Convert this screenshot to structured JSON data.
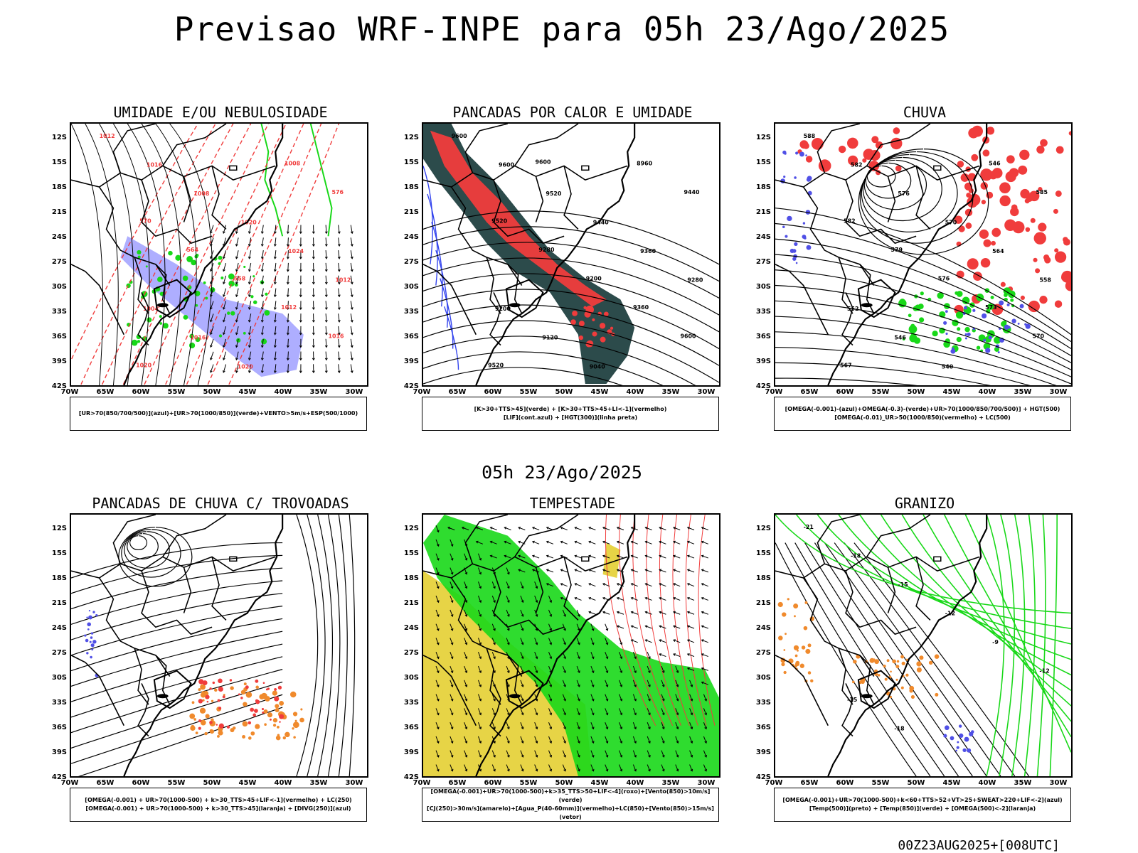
{
  "header": {
    "title": "Previsao WRF-INPE  para 05h 23/Ago/2025",
    "mid_title": "05h 23/Ago/2025",
    "footer": "00Z23AUG2025+[008UTC]"
  },
  "axes": {
    "lat_labels": [
      "12S",
      "15S",
      "18S",
      "21S",
      "24S",
      "27S",
      "30S",
      "33S",
      "36S",
      "39S",
      "42S"
    ],
    "lon_labels": [
      "70W",
      "65W",
      "60W",
      "55W",
      "50W",
      "45W",
      "40W",
      "35W",
      "30W"
    ]
  },
  "colors": {
    "blue": "#5050e6",
    "green": "#18d818",
    "red": "#f03c3c",
    "orange": "#f08a2c",
    "yellow": "#e6d23c",
    "darkteal": "#2c4b4b",
    "lavender": "#9a9aff"
  },
  "panels": [
    {
      "title": "UMIDADE E/OU NEBULOSIDADE",
      "legend": [
        "[UR>70(850/700/500)](azul)+[UR>70(1000/850)](verde)+VENTO>5m/s+ESP(500/1000)"
      ],
      "labels": [
        "1012",
        "1016",
        "1008",
        "1020",
        "1024",
        "1012",
        "1004",
        "1016",
        "1020",
        "1008",
        "576",
        "570",
        "564",
        "558",
        "1012",
        "1016",
        "1020"
      ]
    },
    {
      "title": "PANCADAS POR CALOR E UMIDADE",
      "legend": [
        "[K>30+TTS>45](verde) + [K>30+TTS>45+LI<-1](vermelho)",
        "[LIF](cont.azul) + [HGT(300)](linha preta)"
      ],
      "labels": [
        "9600",
        "9600",
        "9520",
        "9440",
        "9360",
        "9280",
        "9200",
        "9120",
        "9040",
        "8960",
        "9440",
        "9520",
        "9280",
        "9200",
        "9360",
        "9600",
        "9520",
        "9600"
      ]
    },
    {
      "title": "CHUVA",
      "legend": [
        "[OMEGA(-0.001)-(azul)+OMEGA(-0.3)-(verde)+UR>70(1000/850/700/500)] + HGT(500)",
        "[OMEGA(-0.01)_UR>50(1000/850)(vermelho) + LC(500)"
      ],
      "labels": [
        "588",
        "582",
        "576",
        "570",
        "564",
        "558",
        "552",
        "546",
        "540",
        "546",
        "585",
        "582",
        "579",
        "576",
        "573",
        "570",
        "567"
      ]
    },
    {
      "title": "PANCADAS DE CHUVA C/ TROVOADAS",
      "legend": [
        "[OMEGA(-0.001) + UR>70(1000-500) + k>30_TTS>45+LIF<-1](vermelho) + LC(250)",
        "[OMEGA(-0.001) + UR>70(1000-500) + k>30_TTS>45](laranja) + [DIVG(250)](azul)"
      ],
      "labels": []
    },
    {
      "title": "TEMPESTADE",
      "legend": [
        "[OMEGA(-0.001)+UR>70(1000-500)+k>35_TTS>50+LIF<-4](roxo)+[Vento(850)>10m/s](verde)",
        "[CJ(250)>30m/s](amarelo)+[Agua_P(40-60mm)](vermelho)+LC(850)+[Vento(850)>15m/s](vetor)"
      ],
      "labels": []
    },
    {
      "title": "GRANIZO",
      "legend": [
        "[OMEGA(-0.001)+UR>70(1000-500)+k<60+TTS>52+VT>25+SWEAT>220+LIF<-2](azul)",
        "[Temp(500)](preto) + [Temp(850)](verde) + [OMEGA(500)<-2](laranja)"
      ],
      "labels": [
        "-21",
        "-18",
        "-15",
        "-12",
        "-9",
        "-12",
        "-15",
        "-18"
      ]
    }
  ]
}
